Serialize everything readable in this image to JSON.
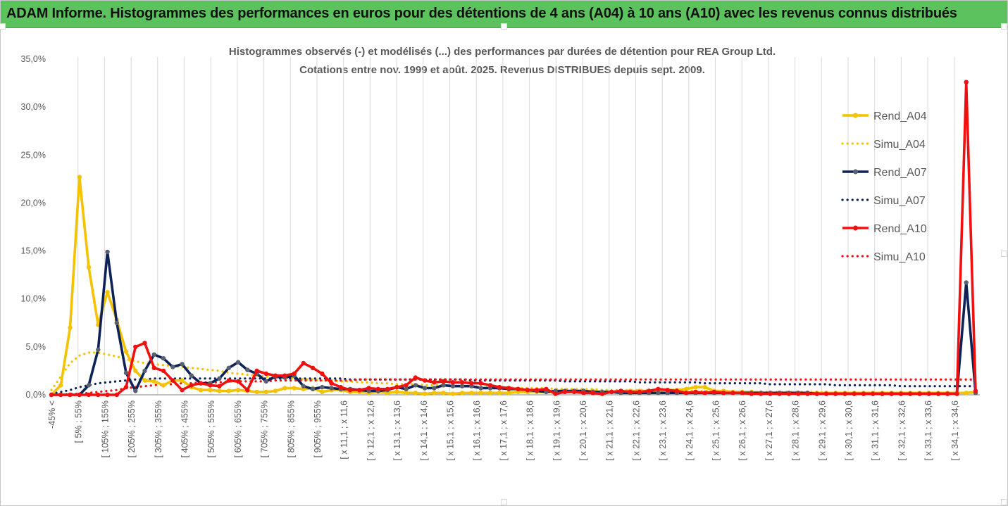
{
  "header": {
    "title": "ADAM Informe. Histogrammes des performances en euros pour des détentions de 4 ans (A04) à 10 ans (A10) avec les revenus connus distribués"
  },
  "chart_data": {
    "type": "line",
    "title_line1": "Histogrammes observés (-) et modélisés (...) des performances par durées de détention pour REA Group Ltd.",
    "title_line2": "Cotations entre nov. 1999 et août. 2025. Revenus DISTRIBUES depuis sept. 2009.",
    "xlabel": "",
    "ylabel": "",
    "ylim": [
      0,
      0.35
    ],
    "y_ticks": [
      0,
      0.05,
      0.1,
      0.15,
      0.2,
      0.25,
      0.3,
      0.35
    ],
    "y_tick_labels": [
      "0,0%",
      "5,0%",
      "10,0%",
      "15,0%",
      "20,0%",
      "25,0%",
      "30,0%",
      "35,0%"
    ],
    "grid": "vertical",
    "legend_position": "right",
    "colors": {
      "A04": "#f5c200",
      "A07": "#0d2257",
      "A10": "#f01010",
      "marker_A07": "#59606e",
      "grid": "#d9d9d9",
      "axis": "#808080",
      "text": "#595959"
    },
    "x_labels": [
      "-45% <",
      "[ 5% ; 55%",
      "[ 105% ; 155%",
      "[ 205% ; 255%",
      "[ 305% ; 355%",
      "[ 405% ; 455%",
      "[ 505% ; 555%",
      "[ 605% ; 655%",
      "[ 705% ; 755%",
      "[ 805% ; 855%",
      "[ 905% ; 955%",
      "[ x 11,1 ; x 11,6",
      "[ x 12,1 ; x 12,6",
      "[ x 13,1 ; x 13,6",
      "[ x 14,1 ; x 14,6",
      "[ x 15,1 ; x 15,6",
      "[ x 16,1 ; x 16,6",
      "[ x 17,1 ; x 17,6",
      "[ x 18,1 ; x 18,6",
      "[ x 19,1 ; x 19,6",
      "[ x 20,1 ; x 20,6",
      "[ x 21,1 ; x 21,6",
      "[ x 22,1 ; x 22,6",
      "[ x 23,1 ; x 23,6",
      "[ x 24,1 ; x 24,6",
      "[ x 25,1 ; x 25,6",
      "[ x 26,1 ; x 26,6",
      "[ x 27,1 ; x 27,6",
      "[ x 28,1 ; x 28,6",
      "[ x 29,1 ; x 29,6",
      "[ x 30,1 ; x 30,6",
      "[ x 31,1 ; x 31,6",
      "[ x 32,1 ; x 32,6",
      "[ x 33,1 ; x 33,6",
      "[ x 34,1 ; x 34,6"
    ],
    "series": [
      {
        "name": "Rend_A04",
        "key": "A04",
        "style": "solid",
        "values": [
          0.0,
          0.01,
          0.07,
          0.227,
          0.133,
          0.073,
          0.107,
          0.078,
          0.045,
          0.025,
          0.015,
          0.014,
          0.01,
          0.015,
          0.015,
          0.008,
          0.005,
          0.005,
          0.004,
          0.004,
          0.005,
          0.004,
          0.003,
          0.003,
          0.004,
          0.007,
          0.007,
          0.006,
          0.007,
          0.003,
          0.005,
          0.005,
          0.003,
          0.003,
          0.002,
          0.003,
          0.002,
          0.003,
          0.002,
          0.002,
          0.001,
          0.002,
          0.002,
          0.001,
          0.002,
          0.002,
          0.002,
          0.002,
          0.002,
          0.002,
          0.003,
          0.003,
          0.003,
          0.003,
          0.003,
          0.003,
          0.004,
          0.004,
          0.004,
          0.003,
          0.003,
          0.003,
          0.004,
          0.004,
          0.004,
          0.005,
          0.005,
          0.005,
          0.006,
          0.008,
          0.008,
          0.004,
          0.004,
          0.003,
          0.003,
          0.003,
          0.002,
          0.002,
          0.002,
          0.002,
          0.002,
          0.002,
          0.002,
          0.002,
          0.002,
          0.002,
          0.002,
          0.002,
          0.002,
          0.002,
          0.002,
          0.002,
          0.002,
          0.002,
          0.002,
          0.002,
          0.002,
          0.002,
          0.002,
          0.003
        ]
      },
      {
        "name": "Simu_A04",
        "key": "A04",
        "style": "dotted",
        "values": [
          0.005,
          0.019,
          0.033,
          0.041,
          0.044,
          0.044,
          0.042,
          0.04,
          0.037,
          0.035,
          0.033,
          0.032,
          0.031,
          0.03,
          0.029,
          0.028,
          0.027,
          0.026,
          0.025,
          0.023,
          0.022,
          0.021,
          0.02,
          0.019,
          0.018,
          0.018,
          0.017,
          0.016,
          0.016,
          0.015,
          0.015,
          0.014,
          0.014,
          0.013,
          0.013,
          0.012,
          0.012,
          0.011,
          0.011,
          0.011,
          0.01,
          0.01,
          0.01,
          0.009,
          0.009,
          0.009,
          0.008,
          0.008,
          0.008,
          0.008,
          0.007,
          0.007,
          0.007,
          0.007,
          0.006,
          0.006,
          0.006,
          0.006,
          0.006,
          0.005,
          0.005,
          0.005,
          0.005,
          0.005,
          0.005,
          0.004,
          0.004,
          0.004,
          0.004,
          0.004,
          0.004,
          0.004,
          0.004,
          0.003,
          0.003,
          0.003,
          0.003,
          0.003,
          0.003,
          0.003,
          0.003,
          0.003,
          0.003,
          0.002,
          0.002,
          0.002,
          0.002,
          0.002,
          0.002,
          0.002,
          0.002,
          0.002,
          0.002,
          0.002,
          0.002,
          0.002,
          0.002,
          0.002,
          0.002,
          0.002
        ]
      },
      {
        "name": "Rend_A07",
        "key": "A07",
        "style": "solid",
        "values": [
          0.0,
          0.0,
          0.0,
          0.0,
          0.01,
          0.047,
          0.149,
          0.075,
          0.023,
          0.004,
          0.025,
          0.042,
          0.038,
          0.029,
          0.032,
          0.02,
          0.012,
          0.012,
          0.017,
          0.028,
          0.034,
          0.026,
          0.022,
          0.014,
          0.019,
          0.018,
          0.02,
          0.009,
          0.006,
          0.008,
          0.007,
          0.006,
          0.006,
          0.005,
          0.004,
          0.004,
          0.005,
          0.008,
          0.006,
          0.01,
          0.007,
          0.007,
          0.01,
          0.009,
          0.009,
          0.009,
          0.007,
          0.007,
          0.007,
          0.006,
          0.006,
          0.005,
          0.004,
          0.003,
          0.004,
          0.004,
          0.004,
          0.004,
          0.003,
          0.003,
          0.003,
          0.002,
          0.002,
          0.002,
          0.002,
          0.002,
          0.002,
          0.002,
          0.002,
          0.002,
          0.002,
          0.002,
          0.002,
          0.002,
          0.002,
          0.002,
          0.002,
          0.002,
          0.002,
          0.002,
          0.002,
          0.002,
          0.001,
          0.001,
          0.001,
          0.001,
          0.001,
          0.001,
          0.001,
          0.001,
          0.001,
          0.001,
          0.001,
          0.001,
          0.001,
          0.001,
          0.001,
          0.001,
          0.117,
          0.002
        ]
      },
      {
        "name": "Simu_A07",
        "key": "A07",
        "style": "dotted",
        "values": [
          0.001,
          0.003,
          0.005,
          0.008,
          0.01,
          0.012,
          0.013,
          0.014,
          0.015,
          0.016,
          0.016,
          0.017,
          0.017,
          0.017,
          0.017,
          0.017,
          0.017,
          0.017,
          0.017,
          0.017,
          0.017,
          0.017,
          0.017,
          0.017,
          0.017,
          0.017,
          0.017,
          0.017,
          0.017,
          0.017,
          0.017,
          0.017,
          0.016,
          0.016,
          0.016,
          0.016,
          0.016,
          0.016,
          0.016,
          0.016,
          0.016,
          0.016,
          0.016,
          0.016,
          0.016,
          0.015,
          0.015,
          0.015,
          0.015,
          0.015,
          0.015,
          0.015,
          0.015,
          0.015,
          0.015,
          0.014,
          0.014,
          0.014,
          0.014,
          0.014,
          0.014,
          0.014,
          0.014,
          0.013,
          0.013,
          0.013,
          0.013,
          0.013,
          0.013,
          0.013,
          0.012,
          0.012,
          0.012,
          0.012,
          0.012,
          0.012,
          0.012,
          0.011,
          0.011,
          0.011,
          0.011,
          0.011,
          0.011,
          0.011,
          0.01,
          0.01,
          0.01,
          0.01,
          0.01,
          0.01,
          0.01,
          0.009,
          0.009,
          0.009,
          0.009,
          0.009,
          0.009,
          0.009,
          0.009,
          0.009
        ]
      },
      {
        "name": "Rend_A10",
        "key": "A10",
        "style": "solid",
        "values": [
          0.0,
          0.0,
          0.0,
          0.0,
          0.0,
          0.0,
          0.0,
          0.0,
          0.008,
          0.05,
          0.054,
          0.028,
          0.025,
          0.015,
          0.005,
          0.01,
          0.012,
          0.01,
          0.009,
          0.015,
          0.014,
          0.005,
          0.025,
          0.022,
          0.02,
          0.02,
          0.022,
          0.033,
          0.028,
          0.022,
          0.012,
          0.008,
          0.005,
          0.005,
          0.007,
          0.006,
          0.006,
          0.008,
          0.01,
          0.018,
          0.015,
          0.013,
          0.014,
          0.013,
          0.013,
          0.012,
          0.012,
          0.01,
          0.008,
          0.007,
          0.006,
          0.005,
          0.005,
          0.006,
          0.001,
          0.003,
          0.003,
          0.002,
          0.002,
          0.001,
          0.003,
          0.004,
          0.003,
          0.003,
          0.004,
          0.006,
          0.005,
          0.004,
          0.002,
          0.003,
          0.002,
          0.003,
          0.002,
          0.002,
          0.002,
          0.001,
          0.001,
          0.001,
          0.001,
          0.001,
          0.001,
          0.001,
          0.001,
          0.001,
          0.001,
          0.001,
          0.001,
          0.001,
          0.001,
          0.001,
          0.001,
          0.001,
          0.001,
          0.001,
          0.001,
          0.001,
          0.001,
          0.001,
          0.326,
          0.004
        ]
      },
      {
        "name": "Simu_A10",
        "key": "A10",
        "style": "dotted",
        "values": [
          0.0,
          0.0,
          0.001,
          0.001,
          0.002,
          0.003,
          0.004,
          0.005,
          0.007,
          0.008,
          0.009,
          0.01,
          0.011,
          0.011,
          0.012,
          0.012,
          0.013,
          0.013,
          0.013,
          0.014,
          0.014,
          0.014,
          0.014,
          0.014,
          0.015,
          0.015,
          0.015,
          0.015,
          0.015,
          0.015,
          0.015,
          0.015,
          0.015,
          0.016,
          0.016,
          0.016,
          0.016,
          0.016,
          0.016,
          0.016,
          0.016,
          0.016,
          0.016,
          0.016,
          0.016,
          0.016,
          0.016,
          0.016,
          0.016,
          0.016,
          0.016,
          0.016,
          0.016,
          0.016,
          0.016,
          0.016,
          0.016,
          0.016,
          0.016,
          0.016,
          0.016,
          0.016,
          0.016,
          0.016,
          0.016,
          0.016,
          0.016,
          0.016,
          0.016,
          0.016,
          0.016,
          0.016,
          0.016,
          0.016,
          0.016,
          0.016,
          0.016,
          0.016,
          0.016,
          0.016,
          0.016,
          0.016,
          0.016,
          0.016,
          0.016,
          0.016,
          0.016,
          0.016,
          0.016,
          0.016,
          0.016,
          0.016,
          0.016,
          0.016,
          0.016,
          0.016,
          0.016,
          0.016,
          0.016,
          0.016
        ]
      }
    ]
  }
}
